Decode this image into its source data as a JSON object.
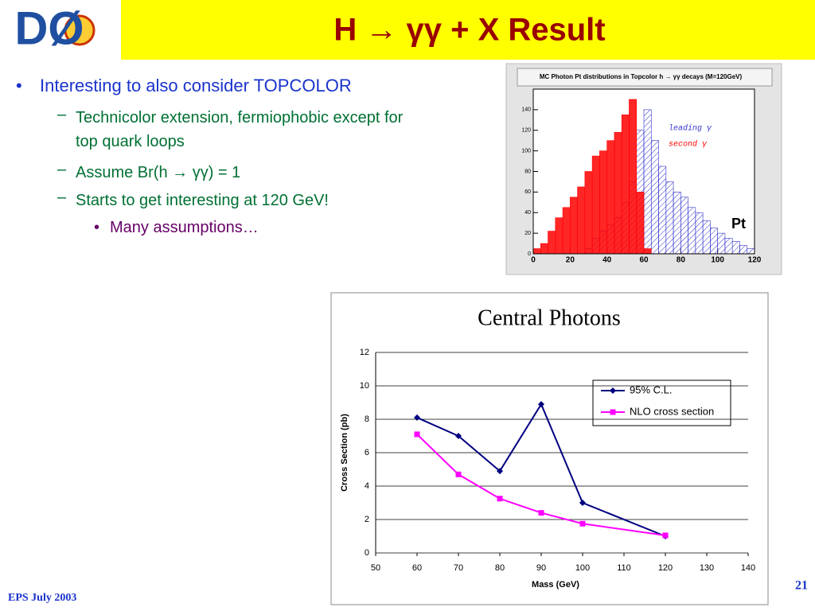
{
  "header": {
    "logo": "DØ",
    "title": "H → γγ + X Result"
  },
  "bullets": [
    {
      "text": "Interesting to also consider TOPCOLOR",
      "level": 1
    },
    {
      "text": "Technicolor extension, fermiophobic except for top quark loops",
      "level": 2
    },
    {
      "text": "Assume Br(h → γγ) = 1",
      "level": 2
    },
    {
      "text": "Starts to get interesting at 120 GeV!",
      "level": 2
    },
    {
      "text": "Many assumptions…",
      "level": 3
    }
  ],
  "footer": {
    "left": "EPS July 2003",
    "page": "21"
  },
  "chart_data": [
    {
      "type": "histogram",
      "title": "MC Photon Pt distributions in Topcolor h → γγ decays (M=120GeV)",
      "xlabel": "Pt",
      "bins": [
        0,
        4,
        8,
        12,
        16,
        20,
        24,
        28,
        32,
        36,
        40,
        44,
        48,
        52,
        56,
        60,
        64,
        68,
        72,
        76,
        80,
        84,
        88,
        92,
        96,
        100,
        104,
        108,
        112,
        116,
        120
      ],
      "series": [
        {
          "name": "leading γ",
          "color": "#3333cc",
          "values": [
            0,
            0,
            0,
            0,
            0,
            0,
            0,
            5,
            15,
            22,
            28,
            35,
            50,
            70,
            120,
            140,
            110,
            85,
            70,
            60,
            55,
            45,
            40,
            32,
            25,
            20,
            15,
            12,
            8,
            5
          ]
        },
        {
          "name": "second γ",
          "color": "#ff0000",
          "values": [
            5,
            10,
            22,
            35,
            45,
            55,
            65,
            80,
            95,
            100,
            110,
            118,
            135,
            150,
            60,
            5,
            0,
            0,
            0,
            0,
            0,
            0,
            0,
            0,
            0,
            0,
            0,
            0,
            0,
            0
          ]
        }
      ],
      "xlim": [
        0,
        120
      ],
      "xticks": [
        0,
        20,
        40,
        60,
        80,
        100,
        120
      ],
      "ylim": [
        0,
        160
      ],
      "yticks": [
        0,
        20,
        40,
        60,
        80,
        100,
        120,
        140
      ]
    },
    {
      "type": "line",
      "title": "Central Photons",
      "xlabel": "Mass (GeV)",
      "ylabel": "Cross Section  (pb)",
      "x": [
        60,
        70,
        80,
        90,
        100,
        120
      ],
      "series": [
        {
          "name": "95% C.L.",
          "color": "#000080",
          "marker": "diamond",
          "values": [
            8.1,
            7.0,
            4.9,
            8.9,
            3.0,
            1.0
          ]
        },
        {
          "name": "NLO cross section",
          "color": "#ff00ff",
          "marker": "square",
          "values": [
            7.1,
            4.7,
            3.25,
            2.4,
            1.75,
            1.05
          ]
        }
      ],
      "xlim": [
        50,
        140
      ],
      "xticks": [
        50,
        60,
        70,
        80,
        90,
        100,
        110,
        120,
        130,
        140
      ],
      "ylim": [
        0,
        12
      ],
      "yticks": [
        0,
        2,
        4,
        6,
        8,
        10,
        12
      ],
      "grid": true
    }
  ]
}
